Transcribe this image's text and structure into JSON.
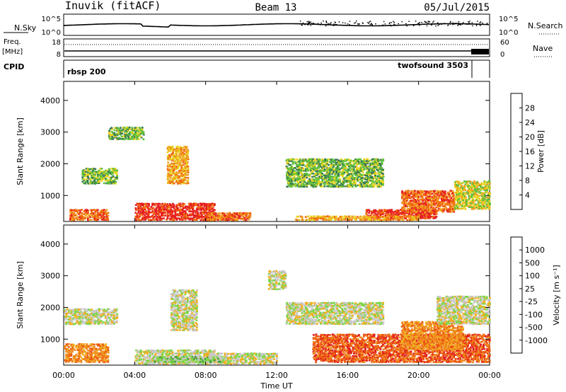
{
  "header": {
    "station": "Inuvik (fitACF)",
    "beam": "Beam 13",
    "date": "05/Jul/2015"
  },
  "top_panels": {
    "nsky_label": "N.Sky",
    "nsearch_label": "N.Search",
    "ticks_left_1": [
      "10^5",
      "10^0"
    ],
    "ticks_right_1": [
      "10^5",
      "10^0"
    ],
    "freq_label": "Freq.",
    "freq_unit": "[MHz]",
    "freq_ticks": [
      "18",
      "8"
    ],
    "nave_label": "Nave",
    "nave_ticks": [
      "60",
      "0"
    ],
    "cpid_label": "CPID",
    "cpid_left": "rbsp 200",
    "cpid_right": "twofsound 3503"
  },
  "x_axis": {
    "label": "Time UT",
    "ticks": [
      "00:00",
      "04:00",
      "08:00",
      "12:00",
      "16:00",
      "20:00",
      "00:00"
    ]
  },
  "y_axis": {
    "label": "Slant Range [km]",
    "ticks": [
      "1000",
      "2000",
      "3000",
      "4000"
    ]
  },
  "chart_data": [
    {
      "type": "heatmap",
      "title": "",
      "xlabel": "",
      "ylabel": "Slant Range [km]",
      "xlim": [
        0,
        24
      ],
      "ylim": [
        180,
        4600
      ],
      "colorbar_label": "Power [dB]",
      "colorbar_ticks": [
        "4",
        "8",
        "12",
        "16",
        "20",
        "24",
        "28"
      ],
      "colorbar_colors": [
        "#0000ff",
        "#1b3aa8",
        "#3a7a52",
        "#5fbf3a",
        "#e8d21e",
        "#f0a020",
        "#f06a10",
        "#e52020"
      ],
      "blobs": [
        {
          "t": [
            0.3,
            2.5
          ],
          "r": [
            250,
            600
          ],
          "level": 6
        },
        {
          "t": [
            4.0,
            6.5
          ],
          "r": [
            250,
            800
          ],
          "level": 7
        },
        {
          "t": [
            6.5,
            8.5
          ],
          "r": [
            250,
            800
          ],
          "level": 7
        },
        {
          "t": [
            8.0,
            10.5
          ],
          "r": [
            250,
            500
          ],
          "level": 6
        },
        {
          "t": [
            5.8,
            7.0
          ],
          "r": [
            1400,
            2600
          ],
          "level": 5
        },
        {
          "t": [
            1.0,
            3.0
          ],
          "r": [
            1400,
            1900
          ],
          "level": 3
        },
        {
          "t": [
            2.5,
            4.5
          ],
          "r": [
            2800,
            3200
          ],
          "level": 3
        },
        {
          "t": [
            17.0,
            21.0
          ],
          "r": [
            300,
            600
          ],
          "level": 7
        },
        {
          "t": [
            19.0,
            22.0
          ],
          "r": [
            500,
            1200
          ],
          "level": 6
        },
        {
          "t": [
            12.5,
            18.0
          ],
          "r": [
            1300,
            2200
          ],
          "level": 3
        },
        {
          "t": [
            13.0,
            20.0
          ],
          "r": [
            250,
            400
          ],
          "level": 5
        },
        {
          "t": [
            22.0,
            24.0
          ],
          "r": [
            600,
            1500
          ],
          "level": 4
        }
      ]
    },
    {
      "type": "heatmap",
      "title": "",
      "xlabel": "Time UT",
      "ylabel": "Slant Range [km]",
      "xlim": [
        0,
        24
      ],
      "ylim": [
        180,
        4600
      ],
      "colorbar_label": "Velocity [m s⁻¹]",
      "colorbar_ticks": [
        "1000",
        "500",
        "100",
        "25",
        "-25",
        "-100",
        "-500",
        "-1000"
      ],
      "colorbar_colors": [
        "#1a3fb0",
        "#2f7a6e",
        "#3f9b3a",
        "#7fd64a",
        "#c8c8c8",
        "#f0b020",
        "#f08a20",
        "#ec5a10",
        "#e02020"
      ],
      "blobs": [
        {
          "t": [
            0.0,
            2.5
          ],
          "r": [
            300,
            900
          ],
          "level": 6
        },
        {
          "t": [
            4.0,
            8.5
          ],
          "r": [
            250,
            700
          ],
          "level": 4
        },
        {
          "t": [
            6.0,
            7.5
          ],
          "r": [
            1300,
            2600
          ],
          "level": 4
        },
        {
          "t": [
            0.0,
            3.0
          ],
          "r": [
            1500,
            2000
          ],
          "level": 4
        },
        {
          "t": [
            8.0,
            12.0
          ],
          "r": [
            250,
            600
          ],
          "level": 4
        },
        {
          "t": [
            11.5,
            12.5
          ],
          "r": [
            2600,
            3200
          ],
          "level": 4
        },
        {
          "t": [
            12.5,
            18.0
          ],
          "r": [
            1500,
            2200
          ],
          "level": 4
        },
        {
          "t": [
            14.0,
            24.0
          ],
          "r": [
            300,
            1200
          ],
          "level": 7
        },
        {
          "t": [
            19.0,
            22.5
          ],
          "r": [
            700,
            1600
          ],
          "level": 6
        },
        {
          "t": [
            21.0,
            24.0
          ],
          "r": [
            1500,
            2400
          ],
          "level": 4
        },
        {
          "t": [
            5.0,
            9.0
          ],
          "r": [
            300,
            500
          ],
          "level": 3
        }
      ]
    }
  ]
}
